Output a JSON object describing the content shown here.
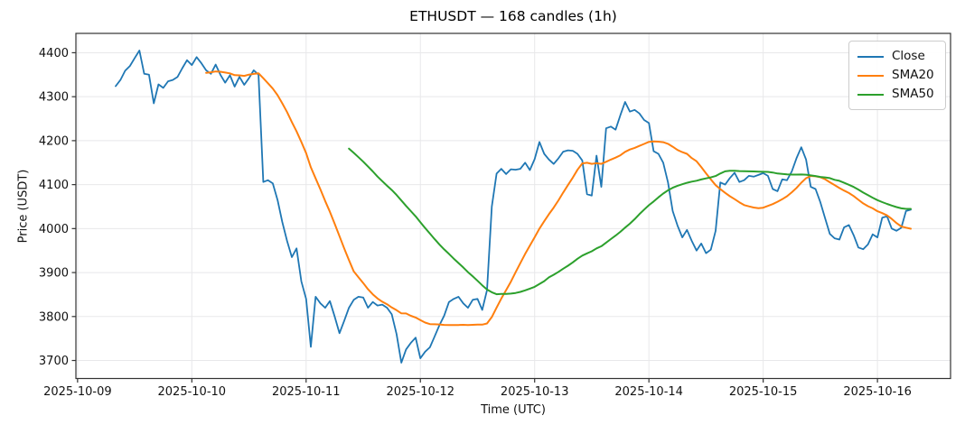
{
  "chart_data": {
    "type": "line",
    "title": "ETHUSDT — 168 candles (1h)",
    "xlabel": "Time (UTC)",
    "ylabel": "Price (USDT)",
    "candle_interval": "1h",
    "candle_count": 168,
    "x_unit": "hours since 2025-10-09 00:00 UTC",
    "x_hours_start": 8,
    "xlim": [
      -0.35,
      183.35
    ],
    "ylim": [
      3659,
      4444
    ],
    "grid": true,
    "grid_color": "#e8e8ea",
    "spine_color": "#333333",
    "text_color": "#111111",
    "legend_position": "upper right",
    "x_ticks": {
      "hours": [
        0,
        24,
        48,
        72,
        96,
        120,
        144,
        168
      ],
      "labels": [
        "2025-10-09",
        "2025-10-10",
        "2025-10-11",
        "2025-10-12",
        "2025-10-13",
        "2025-10-14",
        "2025-10-15",
        "2025-10-16"
      ]
    },
    "y_ticks": [
      3700,
      3800,
      3900,
      4000,
      4100,
      4200,
      4300,
      4400
    ],
    "series": [
      {
        "name": "Close",
        "color": "#1f77b4",
        "values": [
          4324,
          4338,
          4359,
          4370,
          4388,
          4405,
          4352,
          4350,
          4285,
          4328,
          4320,
          4335,
          4338,
          4345,
          4365,
          4383,
          4372,
          4390,
          4376,
          4360,
          4352,
          4373,
          4350,
          4332,
          4349,
          4323,
          4345,
          4327,
          4342,
          4360,
          4350,
          4106,
          4110,
          4103,
          4065,
          4015,
          3972,
          3935,
          3955,
          3880,
          3840,
          3731,
          3845,
          3830,
          3820,
          3835,
          3800,
          3762,
          3790,
          3820,
          3838,
          3845,
          3843,
          3820,
          3833,
          3825,
          3827,
          3820,
          3805,
          3760,
          3695,
          3725,
          3740,
          3752,
          3705,
          3720,
          3730,
          3755,
          3780,
          3802,
          3833,
          3840,
          3845,
          3830,
          3820,
          3838,
          3840,
          3815,
          3860,
          4050,
          4125,
          4136,
          4124,
          4135,
          4134,
          4136,
          4150,
          4133,
          4158,
          4197,
          4170,
          4157,
          4147,
          4160,
          4175,
          4178,
          4177,
          4170,
          4155,
          4078,
          4075,
          4166,
          4095,
          4228,
          4232,
          4225,
          4258,
          4288,
          4266,
          4270,
          4262,
          4247,
          4240,
          4176,
          4170,
          4150,
          4105,
          4040,
          4007,
          3980,
          3997,
          3972,
          3950,
          3966,
          3944,
          3952,
          3995,
          4105,
          4100,
          4115,
          4127,
          4106,
          4110,
          4120,
          4118,
          4122,
          4126,
          4120,
          4090,
          4085,
          4112,
          4110,
          4130,
          4160,
          4185,
          4157,
          4095,
          4090,
          4060,
          4024,
          3988,
          3978,
          3975,
          4003,
          4008,
          3985,
          3957,
          3953,
          3964,
          3987,
          3980,
          4025,
          4028,
          4000,
          3995,
          4002,
          4040,
          4043
        ]
      },
      {
        "name": "SMA20",
        "color": "#ff7f0e",
        "derived_from": "Close",
        "window": 20
      },
      {
        "name": "SMA50",
        "color": "#2ca02c",
        "derived_from": "Close",
        "window": 50
      }
    ]
  }
}
